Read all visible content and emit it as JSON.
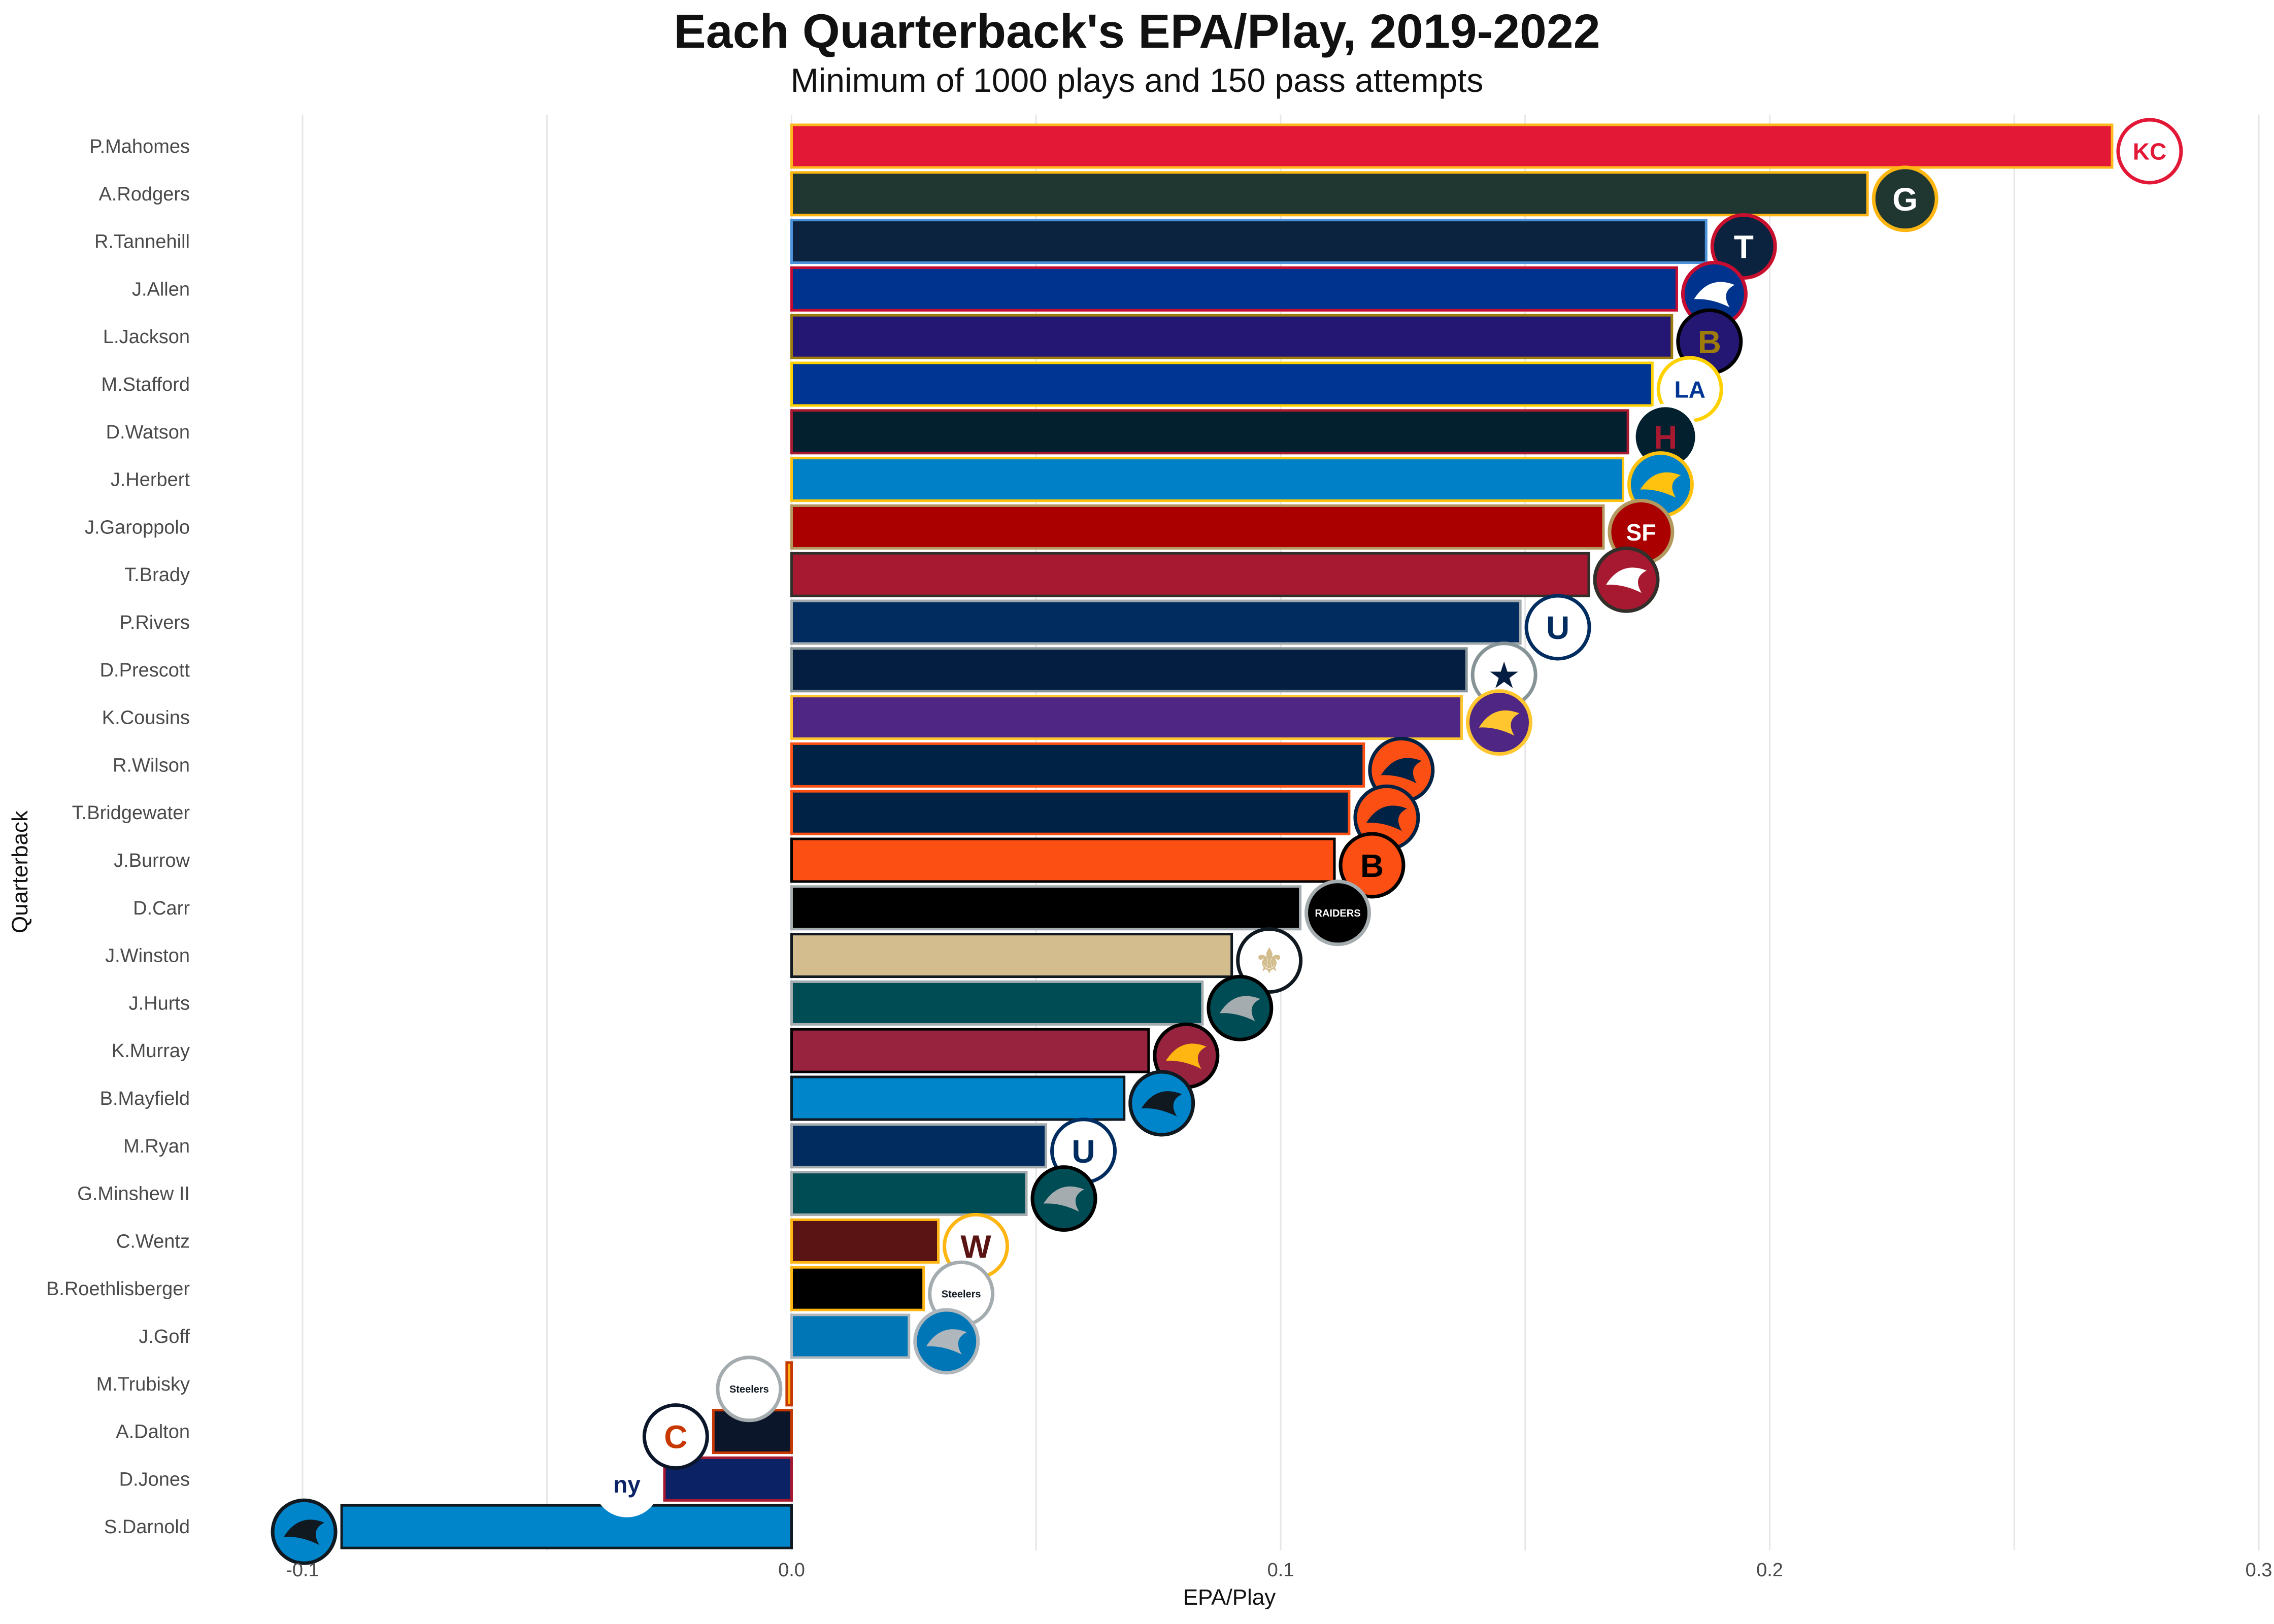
{
  "chart_data": {
    "type": "bar",
    "orientation": "horizontal",
    "title": "Each Quarterback's EPA/Play, 2019-2022",
    "subtitle": "Minimum of 1000 plays and 150 pass attempts",
    "xlabel": "EPA/Play",
    "ylabel": "Quarterback",
    "xlim": [
      -0.1,
      0.3
    ],
    "xticks": [
      -0.1,
      0.0,
      0.1,
      0.2,
      0.3
    ],
    "xtick_labels": [
      "-0.1",
      "0.0",
      "0.1",
      "0.2",
      "0.3"
    ],
    "grid": "vertical",
    "legend": "none",
    "categories": [
      "P.Mahomes",
      "A.Rodgers",
      "R.Tannehill",
      "J.Allen",
      "L.Jackson",
      "M.Stafford",
      "D.Watson",
      "J.Herbert",
      "J.Garoppolo",
      "T.Brady",
      "P.Rivers",
      "D.Prescott",
      "K.Cousins",
      "R.Wilson",
      "T.Bridgewater",
      "J.Burrow",
      "D.Carr",
      "J.Winston",
      "J.Hurts",
      "K.Murray",
      "B.Mayfield",
      "M.Ryan",
      "G.Minshew II",
      "C.Wentz",
      "B.Roethlisberger",
      "J.Goff",
      "M.Trubisky",
      "A.Dalton",
      "D.Jones",
      "S.Darnold"
    ],
    "values": [
      0.27,
      0.22,
      0.187,
      0.181,
      0.18,
      0.176,
      0.171,
      0.17,
      0.166,
      0.163,
      0.149,
      0.138,
      0.137,
      0.117,
      0.114,
      0.111,
      0.104,
      0.09,
      0.084,
      0.073,
      0.068,
      0.052,
      0.048,
      0.03,
      0.027,
      0.024,
      -0.001,
      -0.016,
      -0.026,
      -0.092
    ],
    "fills": [
      "#E31837",
      "#203731",
      "#0C2340",
      "#00338D",
      "#241773",
      "#003594",
      "#03202F",
      "#0080C6",
      "#AA0000",
      "#A71930",
      "#002C5F",
      "#041E42",
      "#4F2683",
      "#002244",
      "#002244",
      "#FB4F14",
      "#000000",
      "#D3BC8D",
      "#004C54",
      "#97233F",
      "#0085CA",
      "#002C5F",
      "#004C54",
      "#5A1414",
      "#000000",
      "#0076B6",
      "#FFB612",
      "#0B162A",
      "#0B2265",
      "#0085CA"
    ],
    "outlines": [
      "#FFB81C",
      "#FFB612",
      "#4B92DB",
      "#C60C30",
      "#9E7C0C",
      "#FFD100",
      "#A71930",
      "#FFC20E",
      "#B3995D",
      "#322F2B",
      "#A2AAAD",
      "#869397",
      "#FFC62F",
      "#FB4F14",
      "#FB4F14",
      "#000000",
      "#A5ACAF",
      "#101820",
      "#A5ACAF",
      "#000000",
      "#101820",
      "#A2AAAD",
      "#A5ACAF",
      "#FFB612",
      "#FFB612",
      "#B0B7BC",
      "#C83803",
      "#C83803",
      "#A71930",
      "#101820"
    ],
    "teams": [
      "KC",
      "GB",
      "TEN",
      "BUF",
      "BAL",
      "LA",
      "HOU",
      "LAC",
      "SF",
      "TB",
      "IND",
      "DAL",
      "MIN",
      "DEN",
      "DEN",
      "CIN",
      "LV",
      "NO",
      "PHI",
      "ARI",
      "CAR",
      "IND",
      "PHI",
      "WAS",
      "PIT",
      "DET",
      "PIT",
      "CHI",
      "NYG",
      "CAR"
    ]
  },
  "logos": {
    "KC": {
      "icon": "chiefs-logo-icon",
      "text": "KC",
      "bg": "#FFFFFF",
      "fg": "#E31837",
      "ring": "#E31837"
    },
    "GB": {
      "icon": "packers-logo-icon",
      "text": "G",
      "bg": "#203731",
      "fg": "#FFFFFF",
      "ring": "#FFB612"
    },
    "TEN": {
      "icon": "titans-logo-icon",
      "text": "T",
      "bg": "#0C2340",
      "fg": "#FFFFFF",
      "ring": "#C8102E"
    },
    "BUF": {
      "icon": "bills-logo-icon",
      "text": "",
      "bg": "#00338D",
      "fg": "#FFFFFF",
      "ring": "#C60C30"
    },
    "BAL": {
      "icon": "ravens-logo-icon",
      "text": "B",
      "bg": "#241773",
      "fg": "#9E7C0C",
      "ring": "#000000"
    },
    "LA": {
      "icon": "rams-logo-icon",
      "text": "LA",
      "bg": "#FFFFFF",
      "fg": "#003594",
      "ring": "#FFD100"
    },
    "HOU": {
      "icon": "texans-logo-icon",
      "text": "H",
      "bg": "#03202F",
      "fg": "#A71930",
      "ring": "#FFFFFF"
    },
    "LAC": {
      "icon": "chargers-logo-icon",
      "text": "",
      "bg": "#0080C6",
      "fg": "#FFC20E",
      "ring": "#FFC20E"
    },
    "SF": {
      "icon": "49ers-logo-icon",
      "text": "SF",
      "bg": "#AA0000",
      "fg": "#FFFFFF",
      "ring": "#B3995D"
    },
    "TB": {
      "icon": "buccaneers-logo-icon",
      "text": "",
      "bg": "#A71930",
      "fg": "#FFFFFF",
      "ring": "#322F2B"
    },
    "IND": {
      "icon": "colts-logo-icon",
      "text": "U",
      "bg": "#FFFFFF",
      "fg": "#002C5F",
      "ring": "#002C5F"
    },
    "DAL": {
      "icon": "cowboys-logo-icon",
      "text": "★",
      "bg": "#FFFFFF",
      "fg": "#041E42",
      "ring": "#869397"
    },
    "MIN": {
      "icon": "vikings-logo-icon",
      "text": "",
      "bg": "#4F2683",
      "fg": "#FFC62F",
      "ring": "#FFC62F"
    },
    "DEN": {
      "icon": "broncos-logo-icon",
      "text": "",
      "bg": "#FB4F14",
      "fg": "#002244",
      "ring": "#002244"
    },
    "CIN": {
      "icon": "bengals-logo-icon",
      "text": "B",
      "bg": "#FB4F14",
      "fg": "#000000",
      "ring": "#000000"
    },
    "LV": {
      "icon": "raiders-logo-icon",
      "text": "RAIDERS",
      "bg": "#000000",
      "fg": "#FFFFFF",
      "ring": "#A5ACAF"
    },
    "NO": {
      "icon": "saints-logo-icon",
      "text": "⚜",
      "bg": "#FFFFFF",
      "fg": "#D3BC8D",
      "ring": "#101820"
    },
    "PHI": {
      "icon": "eagles-logo-icon",
      "text": "",
      "bg": "#004C54",
      "fg": "#A5ACAF",
      "ring": "#000000"
    },
    "ARI": {
      "icon": "cardinals-logo-icon",
      "text": "",
      "bg": "#97233F",
      "fg": "#FFB612",
      "ring": "#000000"
    },
    "CAR": {
      "icon": "panthers-logo-icon",
      "text": "",
      "bg": "#0085CA",
      "fg": "#101820",
      "ring": "#101820"
    },
    "WAS": {
      "icon": "commanders-logo-icon",
      "text": "W",
      "bg": "#FFFFFF",
      "fg": "#5A1414",
      "ring": "#FFB612"
    },
    "PIT": {
      "icon": "steelers-logo-icon",
      "text": "Steelers",
      "bg": "#FFFFFF",
      "fg": "#101820",
      "ring": "#A5ACAF"
    },
    "DET": {
      "icon": "lions-logo-icon",
      "text": "",
      "bg": "#0076B6",
      "fg": "#B0B7BC",
      "ring": "#B0B7BC"
    },
    "CHI": {
      "icon": "bears-logo-icon",
      "text": "C",
      "bg": "#FFFFFF",
      "fg": "#C83803",
      "ring": "#0B162A"
    },
    "NYG": {
      "icon": "giants-logo-icon",
      "text": "ny",
      "bg": "#FFFFFF",
      "fg": "#0B2265",
      "ring": "#FFFFFF"
    }
  }
}
